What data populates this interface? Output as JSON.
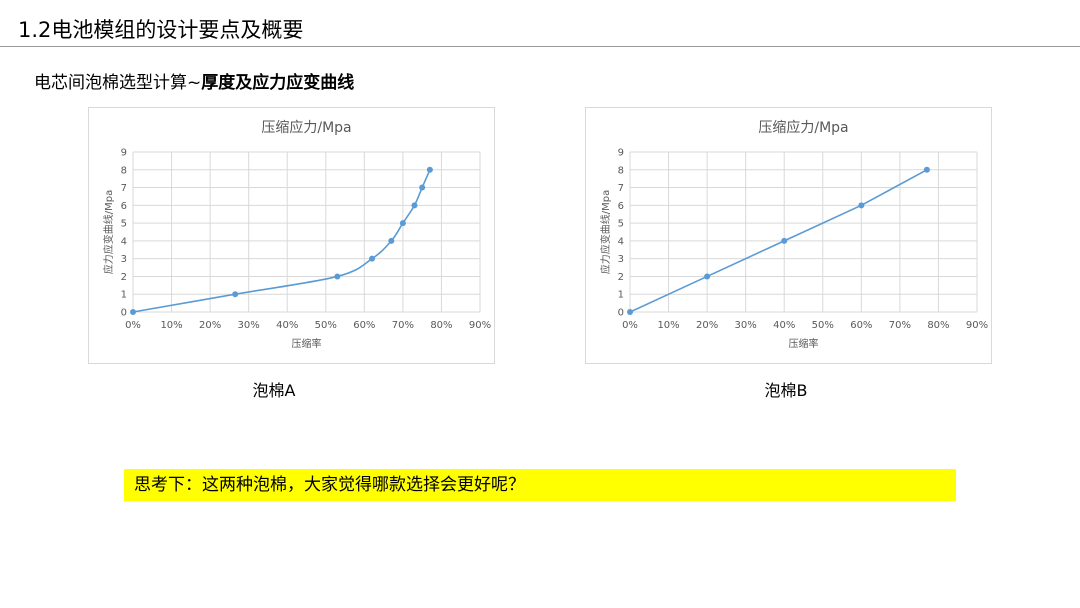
{
  "page": {
    "title": "1.2电池模组的设计要点及概要",
    "subtitle_normal": "电芯间泡棉选型计算~",
    "subtitle_bold": "厚度及应力应变曲线",
    "question": "思考下：这两种泡棉，大家觉得哪款选择会更好呢？"
  },
  "colors": {
    "series": "#5b9bd5",
    "grid": "#d9d9d9",
    "axis_text": "#595959",
    "highlight": "#ffff00"
  },
  "chart_data": [
    {
      "id": "A",
      "type": "scatter",
      "smooth": true,
      "title": "压缩应力/Mpa",
      "xlabel": "压缩率",
      "ylabel": "应力应变曲线/Mpa",
      "caption": "泡棉A",
      "xlim": [
        0,
        0.9
      ],
      "ylim": [
        0,
        9
      ],
      "x_ticks": [
        "0%",
        "10%",
        "20%",
        "30%",
        "40%",
        "50%",
        "60%",
        "70%",
        "80%",
        "90%"
      ],
      "y_ticks": [
        "0",
        "1",
        "2",
        "3",
        "4",
        "5",
        "6",
        "7",
        "8",
        "9"
      ],
      "grid": true,
      "series": [
        {
          "x": [
            0,
            0.265,
            0.53,
            0.62,
            0.67,
            0.7,
            0.73,
            0.75,
            0.77
          ],
          "y": [
            0,
            1,
            2,
            3,
            4,
            5,
            6,
            7,
            8
          ]
        }
      ]
    },
    {
      "id": "B",
      "type": "scatter",
      "smooth": false,
      "title": "压缩应力/Mpa",
      "xlabel": "压缩率",
      "ylabel": "应力应变曲线/Mpa",
      "caption": "泡棉B",
      "xlim": [
        0,
        0.9
      ],
      "ylim": [
        0,
        9
      ],
      "x_ticks": [
        "0%",
        "10%",
        "20%",
        "30%",
        "40%",
        "50%",
        "60%",
        "70%",
        "80%",
        "90%"
      ],
      "y_ticks": [
        "0",
        "1",
        "2",
        "3",
        "4",
        "5",
        "6",
        "7",
        "8",
        "9"
      ],
      "grid": true,
      "series": [
        {
          "x": [
            0,
            0.2,
            0.4,
            0.6,
            0.77
          ],
          "y": [
            0,
            2,
            4,
            6,
            8
          ]
        }
      ]
    }
  ]
}
